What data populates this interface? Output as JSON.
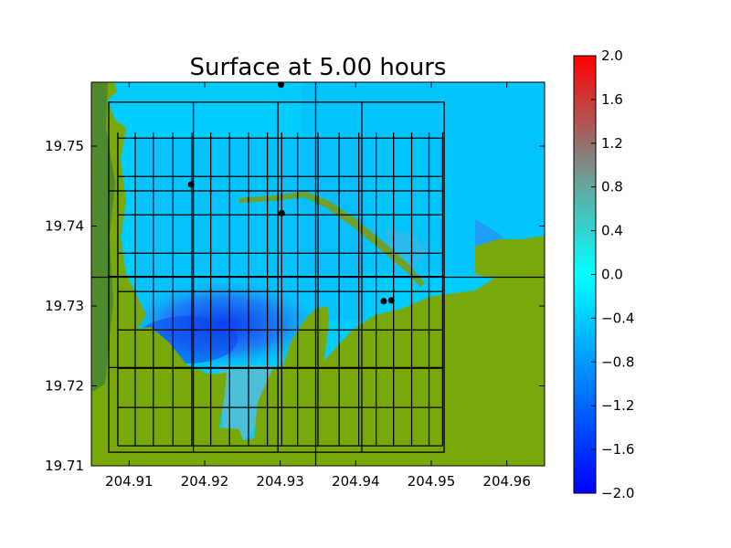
{
  "chart_data": {
    "type": "heatmap",
    "title": "Surface at 5.00 hours",
    "xlabel": "",
    "ylabel": "",
    "xlim": [
      204.905,
      204.965
    ],
    "ylim": [
      19.71,
      19.758
    ],
    "x_ticks": [
      "204.91",
      "204.92",
      "204.93",
      "204.94",
      "204.95",
      "204.96"
    ],
    "x_tick_values": [
      204.91,
      204.92,
      204.93,
      204.94,
      204.95,
      204.96
    ],
    "y_ticks": [
      "19.71",
      "19.72",
      "19.73",
      "19.74",
      "19.75"
    ],
    "y_tick_values": [
      19.71,
      19.72,
      19.73,
      19.74,
      19.75
    ],
    "colorbar": {
      "min": -2.0,
      "max": 2.0,
      "ticks": [
        "2.0",
        "1.6",
        "1.2",
        "0.8",
        "0.4",
        "0.0",
        "−0.4",
        "−0.8",
        "−1.2",
        "−1.6",
        "−2.0"
      ],
      "tick_values": [
        2.0,
        1.6,
        1.2,
        0.8,
        0.4,
        0.0,
        -0.4,
        -0.8,
        -1.2,
        -1.6,
        -2.0
      ],
      "colors": [
        "#0000ff",
        "#00ffff",
        "#e01e1e"
      ]
    },
    "land_color": "#79a80b",
    "land_dark_color": "#4f8a2a",
    "grid_lines": {
      "outer_box_x": [
        204.9073,
        204.9517
      ],
      "outer_box_y": [
        19.7117,
        19.7555
      ],
      "inner_box_x": [
        204.9085,
        204.9515
      ],
      "inner_box_y": [
        19.7125,
        19.7517
      ],
      "fine_x": [
        204.9085,
        204.9108,
        204.9132,
        204.9158,
        204.9183,
        204.9208,
        204.9233,
        204.9258,
        204.9283,
        204.9302,
        204.9323,
        204.935,
        204.9378,
        204.9404,
        204.9427,
        204.945,
        204.9474,
        204.9497,
        204.9515
      ],
      "fine_y": [
        19.7125,
        19.7173,
        19.7222,
        19.727,
        19.7318,
        19.7366,
        19.7414,
        19.7462,
        19.751
      ],
      "major_x": [
        204.9185,
        204.9297,
        204.9347,
        204.9408
      ],
      "major_y": [
        19.7223,
        19.7336,
        19.7337,
        19.7444
      ]
    },
    "markers": [
      {
        "x": 204.9301,
        "y": 19.7577
      },
      {
        "x": 204.9182,
        "y": 19.7452
      },
      {
        "x": 204.9302,
        "y": 19.7416
      },
      {
        "x": 204.9437,
        "y": 19.7306
      },
      {
        "x": 204.9447,
        "y": 19.7307
      }
    ]
  }
}
